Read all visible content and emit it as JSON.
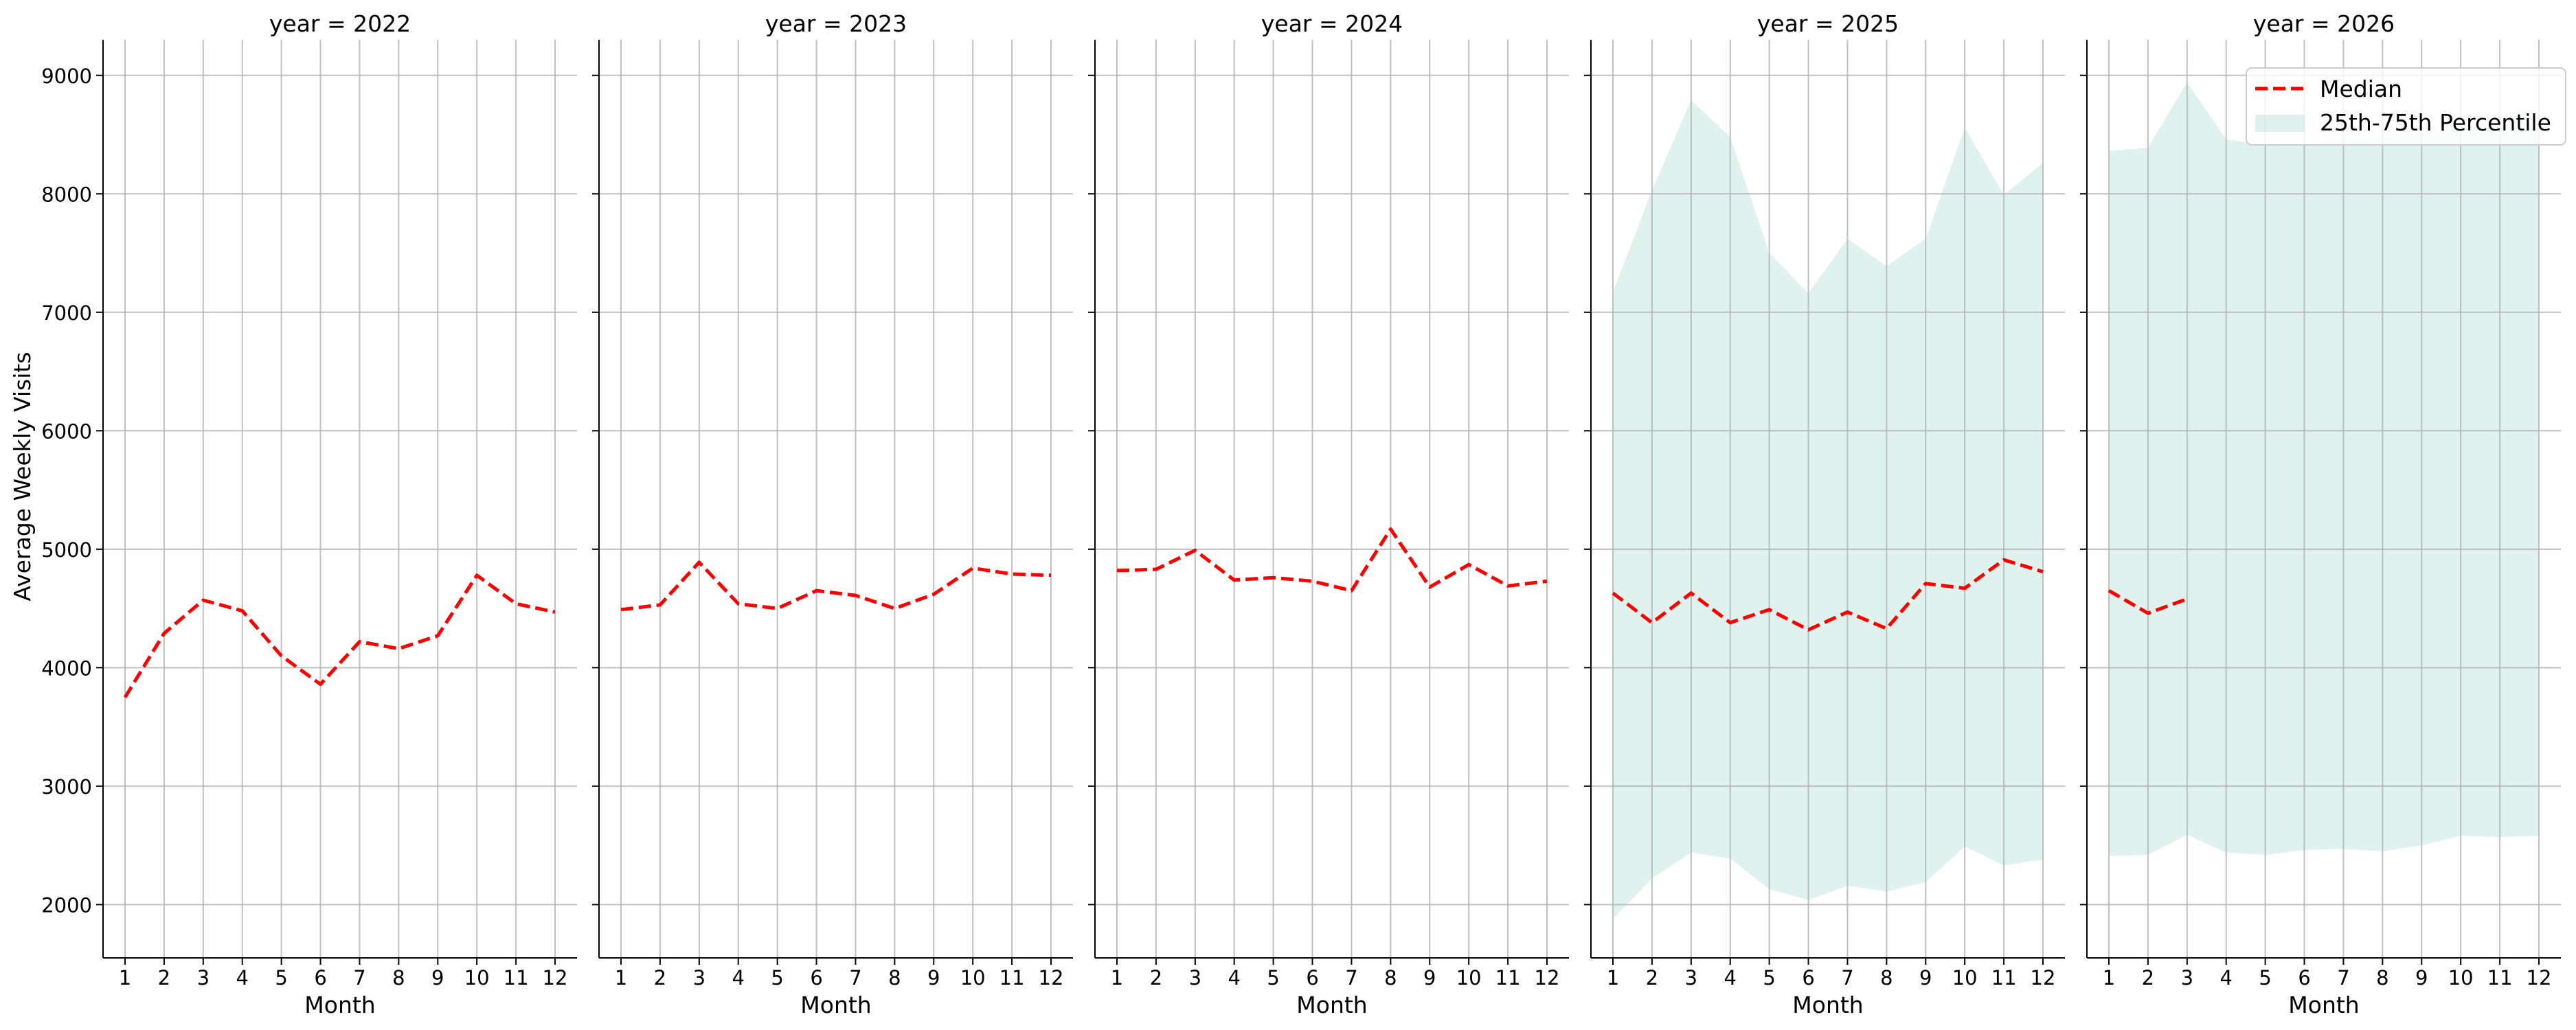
{
  "figure": {
    "ylabel": "Average Weekly Visits",
    "xlabel": "Month"
  },
  "colors": {
    "median": "#ff0000",
    "band": "#9fd9c7",
    "grid": "#b0b0b0",
    "axis": "#000000"
  },
  "legend": {
    "placement": "upper-right of last panel",
    "median_label": "Median",
    "band_label": "25th-75th Percentile"
  },
  "chart_data": [
    {
      "type": "line",
      "title": "year = 2022",
      "xlabel": "Month",
      "ylabel": "Average Weekly Visits",
      "x": [
        1,
        2,
        3,
        4,
        5,
        6,
        7,
        8,
        9,
        10,
        11,
        12
      ],
      "ylim": [
        1550,
        9300
      ],
      "yticks": [
        2000,
        3000,
        4000,
        5000,
        6000,
        7000,
        8000,
        9000
      ],
      "grid": true,
      "series": [
        {
          "name": "Median",
          "x": [
            1,
            2,
            3,
            4,
            5,
            6,
            7,
            8,
            9,
            10,
            11,
            12
          ],
          "values": [
            3750,
            4290,
            4570,
            4480,
            4100,
            3860,
            4220,
            4160,
            4270,
            4780,
            4540,
            4470
          ]
        }
      ]
    },
    {
      "type": "line",
      "title": "year = 2023",
      "xlabel": "Month",
      "x": [
        1,
        2,
        3,
        4,
        5,
        6,
        7,
        8,
        9,
        10,
        11,
        12
      ],
      "ylim": [
        1550,
        9300
      ],
      "grid": true,
      "series": [
        {
          "name": "Median",
          "x": [
            1,
            2,
            3,
            4,
            5,
            6,
            7,
            8,
            9,
            10,
            11,
            12
          ],
          "values": [
            4490,
            4530,
            4890,
            4540,
            4500,
            4650,
            4610,
            4500,
            4620,
            4840,
            4790,
            4780
          ]
        }
      ]
    },
    {
      "type": "line",
      "title": "year = 2024",
      "xlabel": "Month",
      "x": [
        1,
        2,
        3,
        4,
        5,
        6,
        7,
        8,
        9,
        10,
        11,
        12
      ],
      "ylim": [
        1550,
        9300
      ],
      "grid": true,
      "series": [
        {
          "name": "Median",
          "x": [
            1,
            2,
            3,
            4,
            5,
            6,
            7,
            8,
            9,
            10,
            11,
            12
          ],
          "values": [
            4820,
            4830,
            4990,
            4740,
            4760,
            4730,
            4650,
            5170,
            4680,
            4870,
            4690,
            4730
          ]
        }
      ]
    },
    {
      "type": "area",
      "title": "year = 2025",
      "xlabel": "Month",
      "x": [
        1,
        2,
        3,
        4,
        5,
        6,
        7,
        8,
        9,
        10,
        11,
        12
      ],
      "ylim": [
        1550,
        9300
      ],
      "grid": true,
      "series": [
        {
          "name": "Median",
          "x": [
            1,
            2,
            3,
            4,
            5,
            6,
            7,
            8,
            9,
            10,
            11,
            12
          ],
          "values": [
            4630,
            4380,
            4630,
            4380,
            4490,
            4320,
            4470,
            4330,
            4710,
            4670,
            4910,
            4810
          ]
        }
      ],
      "band": {
        "name": "25th-75th Percentile",
        "x": [
          1,
          2,
          3,
          4,
          5,
          6,
          7,
          8,
          9,
          10,
          11,
          12
        ],
        "lower": [
          1880,
          2220,
          2440,
          2390,
          2130,
          2040,
          2160,
          2110,
          2190,
          2490,
          2330,
          2380
        ],
        "upper": [
          7170,
          8030,
          8790,
          8480,
          7500,
          7160,
          7620,
          7390,
          7620,
          8560,
          7990,
          8260
        ]
      }
    },
    {
      "type": "area",
      "title": "year = 2026",
      "xlabel": "Month",
      "x": [
        1,
        2,
        3,
        4,
        5,
        6,
        7,
        8,
        9,
        10,
        11,
        12
      ],
      "ylim": [
        1550,
        9300
      ],
      "grid": true,
      "series": [
        {
          "name": "Median",
          "x": [
            1,
            2,
            3
          ],
          "values": [
            4650,
            4460,
            4580
          ]
        }
      ],
      "band": {
        "name": "25th-75th Percentile",
        "x": [
          1,
          2,
          3,
          4,
          5,
          6,
          7,
          8,
          9,
          10,
          11,
          12
        ],
        "lower": [
          2410,
          2420,
          2590,
          2440,
          2420,
          2460,
          2470,
          2450,
          2500,
          2580,
          2570,
          2580
        ],
        "upper": [
          8360,
          8390,
          8940,
          8460,
          8410,
          8420,
          8460,
          8470,
          8520,
          8560,
          8610,
          8640
        ]
      }
    }
  ]
}
